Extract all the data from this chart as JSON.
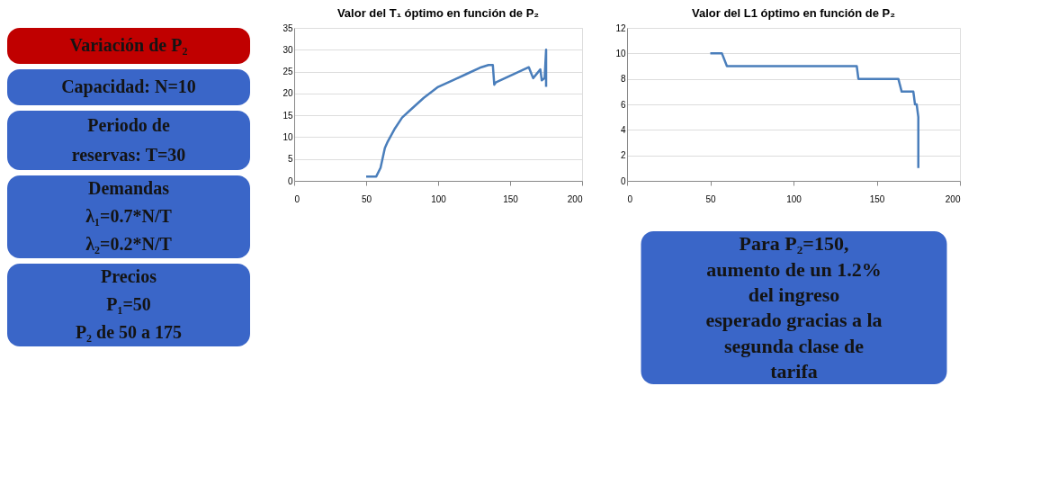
{
  "chart_data": [
    {
      "type": "other",
      "annotations": [
        "Variación de P₂",
        "Capacidad: N=10",
        "Periodo de\nreservas: T=30",
        "Demandas\nλ₁=0.7*N/T\nλ₂=0.2*N/T",
        "Precios\nP₁=50\nP₂ de 50 a 175"
      ],
      "colors": [
        "#c00000",
        "#3a66c8",
        "#3a66c8",
        "#3a66c8",
        "#3a66c8"
      ]
    },
    {
      "type": "line",
      "title": "Valor del T₁ óptimo en función de P₂",
      "color": "#4a7ebb",
      "grid": "y",
      "xlim": [
        0,
        200
      ],
      "xticks": [
        0,
        50,
        100,
        150,
        200
      ],
      "ylim": [
        0,
        35
      ],
      "yticks": [
        0,
        5,
        10,
        15,
        20,
        25,
        30,
        35
      ],
      "x": [
        50,
        57,
        60,
        63,
        65,
        70,
        75,
        80,
        90,
        100,
        110,
        120,
        130,
        135,
        138,
        139,
        140,
        163,
        166,
        171,
        172,
        174,
        175,
        175
      ],
      "values": [
        1,
        1,
        3,
        7.5,
        9,
        12,
        14.5,
        16,
        19,
        21.5,
        23,
        24.5,
        26,
        26.5,
        26.5,
        22,
        22.5,
        26,
        23.5,
        25.5,
        23,
        23.5,
        30,
        21.5
      ]
    },
    {
      "type": "line",
      "title": "Valor del L1 óptimo en función de P₂",
      "color": "#4a7ebb",
      "grid": "y",
      "xlim": [
        0,
        200
      ],
      "xticks": [
        0,
        50,
        100,
        150,
        200
      ],
      "ylim": [
        0,
        12
      ],
      "yticks": [
        0,
        2,
        4,
        6,
        8,
        10,
        12
      ],
      "x": [
        50,
        57,
        60,
        138,
        139,
        163,
        165,
        172,
        173,
        174,
        175,
        175,
        175
      ],
      "values": [
        10,
        10,
        9,
        9,
        8,
        8,
        7,
        7,
        6,
        6,
        5,
        4,
        1
      ]
    },
    {
      "type": "other",
      "annotations": [
        "Para P₂=150,\naumento de un 1.2%\ndel ingreso\nesperado gracias a la\nsegunda clase de\ntarifa"
      ],
      "colors": [
        "#3a66c8"
      ]
    }
  ]
}
